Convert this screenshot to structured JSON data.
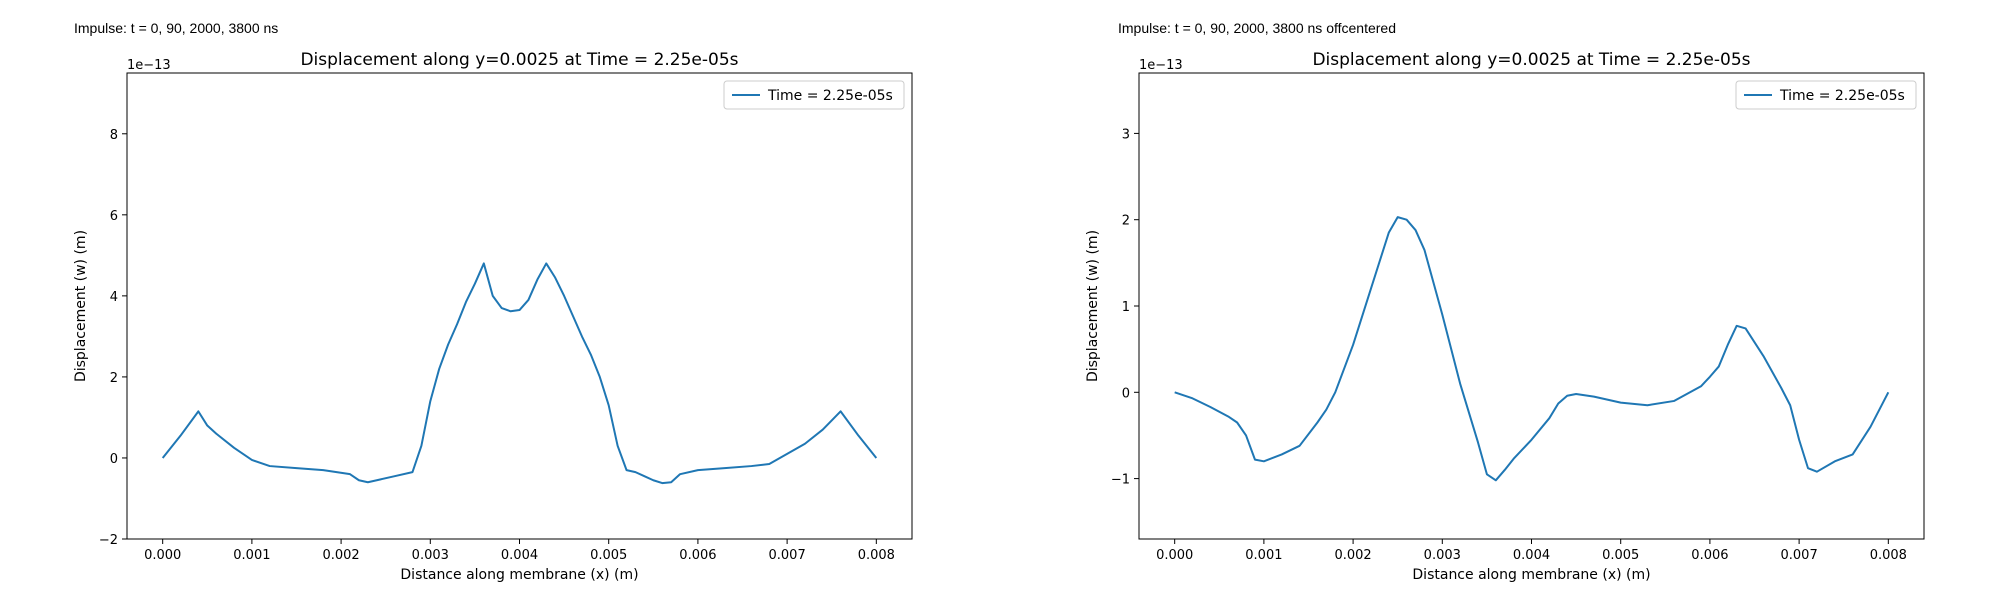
{
  "panels": [
    {
      "caption": "Impulse: t = 0, 90, 2000, 3800 ns"
    },
    {
      "caption": "Impulse: t = 0, 90, 2000, 3800 ns offcentered"
    }
  ],
  "chart_data": [
    {
      "type": "line",
      "title": "Displacement along y=0.0025 at Time = 2.25e-05s",
      "xlabel": "Distance along membrane (x) (m)",
      "ylabel": "Displacement (w) (m)",
      "offset_text": "1e−13",
      "xlim": [
        -0.0004,
        0.0084
      ],
      "ylim": [
        -2.0,
        9.5
      ],
      "xticks": [
        0.0,
        0.001,
        0.002,
        0.003,
        0.004,
        0.005,
        0.006,
        0.007,
        0.008
      ],
      "xtick_labels": [
        "0.000",
        "0.001",
        "0.002",
        "0.003",
        "0.004",
        "0.005",
        "0.006",
        "0.007",
        "0.008"
      ],
      "yticks": [
        -2,
        0,
        2,
        4,
        6,
        8
      ],
      "ytick_labels": [
        "−2",
        "0",
        "2",
        "4",
        "6",
        "8"
      ],
      "legend_position": "top-right",
      "color": "#1f77b4",
      "series": [
        {
          "name": "Time = 2.25e-05s",
          "x": [
            0.0,
            0.0002,
            0.0004,
            0.0005,
            0.0006,
            0.0008,
            0.001,
            0.0012,
            0.0015,
            0.0018,
            0.0021,
            0.0022,
            0.0023,
            0.0024,
            0.0026,
            0.0028,
            0.0029,
            0.003,
            0.0031,
            0.0032,
            0.0033,
            0.0034,
            0.0035,
            0.0036,
            0.0037,
            0.0038,
            0.0039,
            0.004,
            0.0041,
            0.0042,
            0.0043,
            0.0044,
            0.0045,
            0.0046,
            0.0047,
            0.0048,
            0.0049,
            0.005,
            0.0051,
            0.0052,
            0.0053,
            0.0054,
            0.0055,
            0.0056,
            0.0057,
            0.0058,
            0.006,
            0.0063,
            0.0066,
            0.0068,
            0.007,
            0.0072,
            0.0074,
            0.0076,
            0.0078,
            0.008
          ],
          "y": [
            0.0,
            0.55,
            1.15,
            0.8,
            0.6,
            0.25,
            -0.05,
            -0.2,
            -0.25,
            -0.3,
            -0.4,
            -0.55,
            -0.6,
            -0.55,
            -0.45,
            -0.35,
            0.3,
            1.4,
            2.2,
            2.8,
            3.3,
            3.85,
            4.3,
            4.8,
            4.0,
            3.7,
            3.62,
            3.65,
            3.9,
            4.4,
            4.8,
            4.45,
            4.0,
            3.5,
            3.0,
            2.55,
            2.0,
            1.3,
            0.3,
            -0.3,
            -0.35,
            -0.45,
            -0.55,
            -0.62,
            -0.6,
            -0.4,
            -0.3,
            -0.25,
            -0.2,
            -0.15,
            0.1,
            0.35,
            0.7,
            1.15,
            0.55,
            0.0
          ]
        }
      ]
    },
    {
      "type": "line",
      "title": "Displacement along y=0.0025 at Time = 2.25e-05s",
      "xlabel": "Distance along membrane (x) (m)",
      "ylabel": "Displacement (w) (m)",
      "offset_text": "1e−13",
      "xlim": [
        -0.0004,
        0.0084
      ],
      "ylim": [
        -1.7,
        3.7
      ],
      "xticks": [
        0.0,
        0.001,
        0.002,
        0.003,
        0.004,
        0.005,
        0.006,
        0.007,
        0.008
      ],
      "xtick_labels": [
        "0.000",
        "0.001",
        "0.002",
        "0.003",
        "0.004",
        "0.005",
        "0.006",
        "0.007",
        "0.008"
      ],
      "yticks": [
        -1,
        0,
        1,
        2,
        3
      ],
      "ytick_labels": [
        "−1",
        "0",
        "1",
        "2",
        "3"
      ],
      "legend_position": "top-right",
      "color": "#1f77b4",
      "series": [
        {
          "name": "Time = 2.25e-05s",
          "x": [
            0.0,
            0.0002,
            0.0004,
            0.0006,
            0.0007,
            0.0008,
            0.0009,
            0.001,
            0.0012,
            0.0014,
            0.0016,
            0.0017,
            0.0018,
            0.002,
            0.0022,
            0.0024,
            0.0025,
            0.0026,
            0.0027,
            0.0028,
            0.003,
            0.0032,
            0.0034,
            0.0035,
            0.0036,
            0.0037,
            0.0038,
            0.004,
            0.0042,
            0.0043,
            0.0044,
            0.0045,
            0.0047,
            0.005,
            0.0053,
            0.0056,
            0.0059,
            0.006,
            0.0061,
            0.0062,
            0.0063,
            0.0064,
            0.0066,
            0.0068,
            0.0069,
            0.007,
            0.0071,
            0.0072,
            0.0074,
            0.0076,
            0.0078,
            0.008
          ],
          "y": [
            0.0,
            -0.07,
            -0.17,
            -0.28,
            -0.35,
            -0.5,
            -0.78,
            -0.8,
            -0.72,
            -0.62,
            -0.35,
            -0.2,
            0.0,
            0.55,
            1.2,
            1.85,
            2.03,
            2.0,
            1.88,
            1.65,
            0.9,
            0.1,
            -0.58,
            -0.95,
            -1.02,
            -0.9,
            -0.77,
            -0.55,
            -0.3,
            -0.13,
            -0.04,
            -0.02,
            -0.05,
            -0.12,
            -0.15,
            -0.1,
            0.07,
            0.18,
            0.3,
            0.55,
            0.77,
            0.74,
            0.42,
            0.05,
            -0.15,
            -0.55,
            -0.88,
            -0.92,
            -0.8,
            -0.72,
            -0.4,
            0.0
          ]
        }
      ]
    }
  ]
}
